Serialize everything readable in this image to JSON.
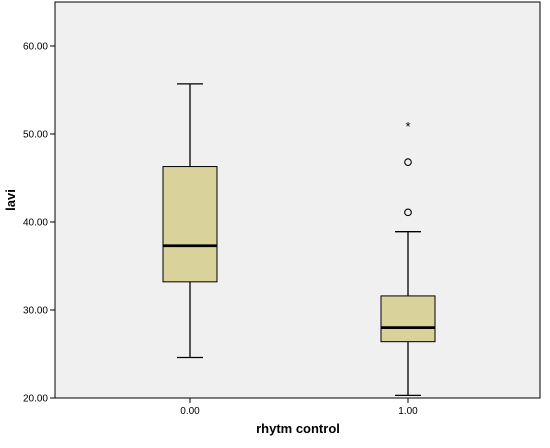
{
  "chart_data": {
    "type": "boxplot",
    "title": "",
    "xlabel": "rhytm control",
    "ylabel": "lavi",
    "ylim": [
      20,
      65
    ],
    "yticks": [
      "20.00",
      "30.00",
      "40.00",
      "50.00",
      "60.00"
    ],
    "ytick_values": [
      20,
      30,
      40,
      50,
      60
    ],
    "categories": [
      "0.00",
      "1.00"
    ],
    "boxes": [
      {
        "category": "0.00",
        "whisker_low": 24.6,
        "q1": 33.2,
        "median": 37.3,
        "q3": 46.3,
        "whisker_high": 55.7,
        "outliers": [],
        "extremes": []
      },
      {
        "category": "1.00",
        "whisker_low": 20.3,
        "q1": 26.4,
        "median": 28.0,
        "q3": 31.6,
        "whisker_high": 38.9,
        "outliers": [
          41.1,
          46.8
        ],
        "extremes": [
          50.9
        ]
      }
    ],
    "grid": false,
    "colors": {
      "box_fill": "#d9d39b",
      "plot_background": "#f0f0f0",
      "line": "#000000"
    }
  }
}
